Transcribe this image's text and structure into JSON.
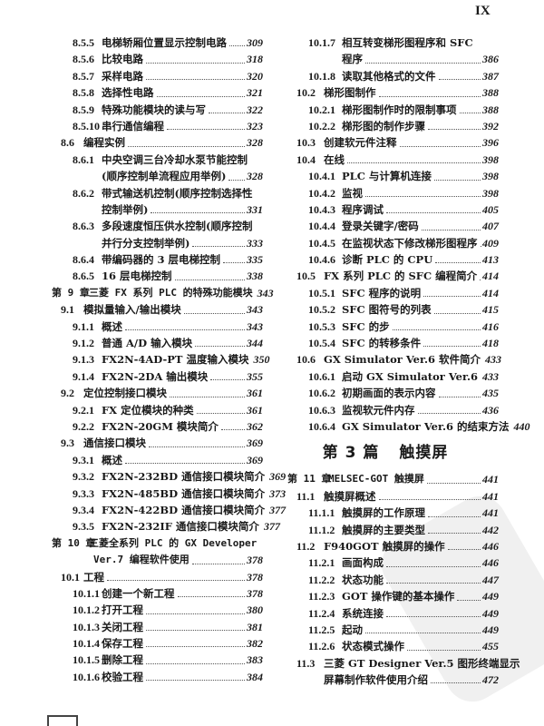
{
  "page_number": "IX",
  "left_column": [
    {
      "level": 2,
      "num": "8.5.5",
      "title": "电梯轿厢位置显示控制电路",
      "page": "309"
    },
    {
      "level": 2,
      "num": "8.5.6",
      "title": "比较电路",
      "page": "318"
    },
    {
      "level": 2,
      "num": "8.5.7",
      "title": "采样电路",
      "page": "320"
    },
    {
      "level": 2,
      "num": "8.5.8",
      "title": "选择性电路",
      "page": "321"
    },
    {
      "level": 2,
      "num": "8.5.9",
      "title": "特殊功能模块的读与写",
      "page": "322"
    },
    {
      "level": 2,
      "num": "8.5.10",
      "title": "串行通信编程",
      "page": "323"
    },
    {
      "level": 1,
      "num": "8.6",
      "title": "编程实例",
      "page": "328"
    },
    {
      "level": 2,
      "num": "8.6.1",
      "title": "中央空调三台冷却水泵节能控制",
      "title2": "(顺序控制单流程应用举例)",
      "page": "328"
    },
    {
      "level": 2,
      "num": "8.6.2",
      "title": "带式输送机控制(顺序控制选择性",
      "title2": "控制举例)",
      "page": "331"
    },
    {
      "level": 2,
      "num": "8.6.3",
      "title": "多段速度恒压供水控制(顺序控制",
      "title2": "并行分支控制举例)",
      "page": "333"
    },
    {
      "level": 2,
      "num": "8.6.4",
      "title": "带编码器的 3 层电梯控制",
      "page": "335"
    },
    {
      "level": 2,
      "num": "8.6.5",
      "title": "16 层电梯控制",
      "page": "338"
    },
    {
      "level": 0,
      "num": "第 9 章",
      "title": "三菱 FX 系列 PLC 的特殊功能模块",
      "page": "343"
    },
    {
      "level": 1,
      "num": "9.1",
      "title": "模拟量输入/输出模块",
      "page": "343"
    },
    {
      "level": 2,
      "num": "9.1.1",
      "title": "概述",
      "page": "343"
    },
    {
      "level": 2,
      "num": "9.1.2",
      "title": "普通 A/D 输入模块",
      "page": "344"
    },
    {
      "level": 2,
      "num": "9.1.3",
      "title": "FX2N-4AD-PT 温度输入模块",
      "page": "350"
    },
    {
      "level": 2,
      "num": "9.1.4",
      "title": "FX2N-2DA 输出模块",
      "page": "355"
    },
    {
      "level": 1,
      "num": "9.2",
      "title": "定位控制接口模块",
      "page": "361"
    },
    {
      "level": 2,
      "num": "9.2.1",
      "title": "FX 定位模块的种类",
      "page": "361"
    },
    {
      "level": 2,
      "num": "9.2.2",
      "title": "FX2N-20GM 模块简介",
      "page": "362"
    },
    {
      "level": 1,
      "num": "9.3",
      "title": "通信接口模块",
      "page": "369"
    },
    {
      "level": 2,
      "num": "9.3.1",
      "title": "概述",
      "page": "369"
    },
    {
      "level": 2,
      "num": "9.3.2",
      "title": "FX2N-232BD 通信接口模块简介",
      "page": "369"
    },
    {
      "level": 2,
      "num": "9.3.3",
      "title": "FX2N-485BD 通信接口模块简介",
      "page": "373"
    },
    {
      "level": 2,
      "num": "9.3.4",
      "title": "FX2N-422BD 通信接口模块简介",
      "page": "377"
    },
    {
      "level": 2,
      "num": "9.3.5",
      "title": "FX2N-232IF 通信接口模块简介",
      "page": "377"
    },
    {
      "level": 0,
      "num": "第 10 章",
      "title": "三菱全系列 PLC 的 GX Developer",
      "title2": "Ver.7 编程软件使用",
      "page": "378"
    },
    {
      "level": 1,
      "num": "10.1",
      "title": "工程",
      "page": "378"
    },
    {
      "level": 2,
      "num": "10.1.1",
      "title": "创建一个新工程",
      "page": "378"
    },
    {
      "level": 2,
      "num": "10.1.2",
      "title": "打开工程",
      "page": "380"
    },
    {
      "level": 2,
      "num": "10.1.3",
      "title": "关闭工程",
      "page": "381"
    },
    {
      "level": 2,
      "num": "10.1.4",
      "title": "保存工程",
      "page": "382"
    },
    {
      "level": 2,
      "num": "10.1.5",
      "title": "删除工程",
      "page": "383"
    },
    {
      "level": 2,
      "num": "10.1.6",
      "title": "校验工程",
      "page": "384"
    }
  ],
  "right_column": [
    {
      "level": 2,
      "num": "10.1.7",
      "title": "相互转变梯形图程序和 SFC",
      "title2": "程序",
      "page": "386"
    },
    {
      "level": 2,
      "num": "10.1.8",
      "title": "读取其他格式的文件",
      "page": "387"
    },
    {
      "level": 1,
      "num": "10.2",
      "title": "梯形图制作",
      "page": "388"
    },
    {
      "level": 2,
      "num": "10.2.1",
      "title": "梯形图制作时的限制事项",
      "page": "388"
    },
    {
      "level": 2,
      "num": "10.2.2",
      "title": "梯形图的制作步骤",
      "page": "392"
    },
    {
      "level": 1,
      "num": "10.3",
      "title": "创建软元件注释",
      "page": "396"
    },
    {
      "level": 1,
      "num": "10.4",
      "title": "在线",
      "page": "398"
    },
    {
      "level": 2,
      "num": "10.4.1",
      "title": "PLC 与计算机连接",
      "page": "398"
    },
    {
      "level": 2,
      "num": "10.4.2",
      "title": "监视",
      "page": "398"
    },
    {
      "level": 2,
      "num": "10.4.3",
      "title": "程序调试",
      "page": "405"
    },
    {
      "level": 2,
      "num": "10.4.4",
      "title": "登录关键字/密码",
      "page": "407"
    },
    {
      "level": 2,
      "num": "10.4.5",
      "title": "在监视状态下修改梯形图程序",
      "page": "409"
    },
    {
      "level": 2,
      "num": "10.4.6",
      "title": "诊断 PLC 的 CPU",
      "page": "413"
    },
    {
      "level": 1,
      "num": "10.5",
      "title": "FX 系列 PLC 的 SFC 编程简介",
      "page": "414"
    },
    {
      "level": 2,
      "num": "10.5.1",
      "title": "SFC 程序的说明",
      "page": "414"
    },
    {
      "level": 2,
      "num": "10.5.2",
      "title": "SFC 图符号的列表",
      "page": "415"
    },
    {
      "level": 2,
      "num": "10.5.3",
      "title": "SFC 的步",
      "page": "416"
    },
    {
      "level": 2,
      "num": "10.5.4",
      "title": "SFC 的转移条件",
      "page": "418"
    },
    {
      "level": 1,
      "num": "10.6",
      "title": "GX Simulator Ver.6 软件简介",
      "page": "433"
    },
    {
      "level": 2,
      "num": "10.6.1",
      "title": "启动 GX Simulator Ver.6",
      "page": "433"
    },
    {
      "level": 2,
      "num": "10.6.2",
      "title": "初期画面的表示内容",
      "page": "435"
    },
    {
      "level": 2,
      "num": "10.6.3",
      "title": "监视软元件内存",
      "page": "436"
    },
    {
      "level": 2,
      "num": "10.6.4",
      "title": "GX Simulator Ver.6 的结束方法",
      "page": "440"
    },
    {
      "part": true,
      "num": "第 3 篇",
      "title": "触摸屏"
    },
    {
      "level": 0,
      "num": "第 11 章",
      "title": "MELSEC-GOT 触摸屏",
      "page": "441"
    },
    {
      "level": 1,
      "num": "11.1",
      "title": "触摸屏概述",
      "page": "441"
    },
    {
      "level": 2,
      "num": "11.1.1",
      "title": "触摸屏的工作原理",
      "page": "441"
    },
    {
      "level": 2,
      "num": "11.1.2",
      "title": "触摸屏的主要类型",
      "page": "442"
    },
    {
      "level": 1,
      "num": "11.2",
      "title": "F940GOT 触摸屏的操作",
      "page": "446"
    },
    {
      "level": 2,
      "num": "11.2.1",
      "title": "画面构成",
      "page": "446"
    },
    {
      "level": 2,
      "num": "11.2.2",
      "title": "状态功能",
      "page": "447"
    },
    {
      "level": 2,
      "num": "11.2.3",
      "title": "GOT 操作键的基本操作",
      "page": "449"
    },
    {
      "level": 2,
      "num": "11.2.4",
      "title": "系统连接",
      "page": "449"
    },
    {
      "level": 2,
      "num": "11.2.5",
      "title": "起动",
      "page": "449"
    },
    {
      "level": 2,
      "num": "11.2.6",
      "title": "状态模式操作",
      "page": "455"
    },
    {
      "level": 1,
      "num": "11.3",
      "title": "三菱 GT Designer Ver.5 图形终端显示",
      "title2": "屏幕制作软件使用介绍",
      "page": "472"
    }
  ]
}
